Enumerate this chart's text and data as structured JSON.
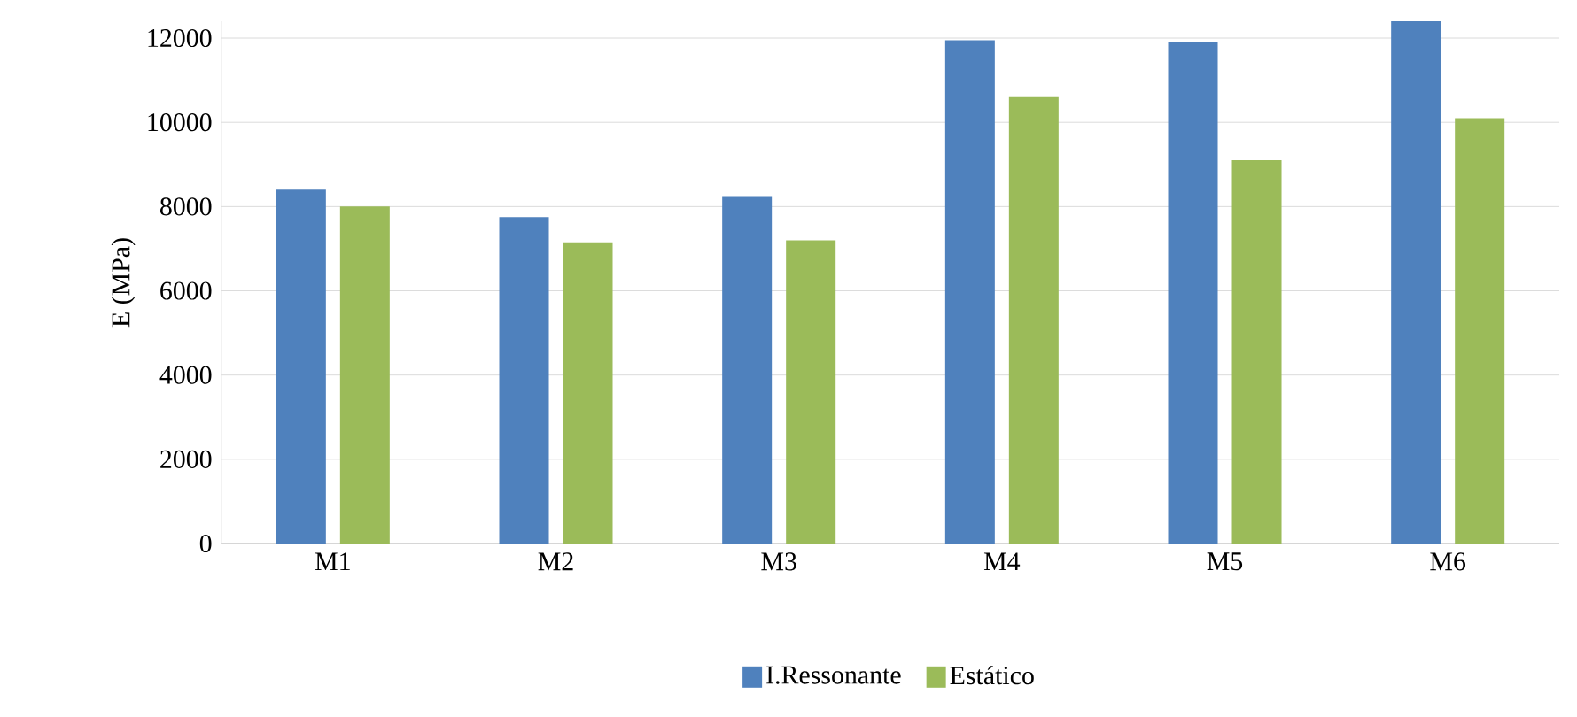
{
  "chart_data": {
    "type": "bar",
    "ylabel": "E (MPa)",
    "categories": [
      "M1",
      "M2",
      "M3",
      "M4",
      "M5",
      "M6"
    ],
    "series": [
      {
        "name": "I.Ressonante",
        "color": "#4f81bd",
        "values": [
          8400,
          7750,
          8250,
          11950,
          11900,
          12400
        ]
      },
      {
        "name": "Estático",
        "color": "#9bbb59",
        "values": [
          8000,
          7150,
          7200,
          10600,
          9100,
          10100
        ]
      }
    ],
    "ylim": [
      0,
      12400
    ],
    "yticks": [
      0,
      2000,
      4000,
      6000,
      8000,
      10000,
      12000
    ],
    "grid": "y",
    "legend": "bottom"
  }
}
